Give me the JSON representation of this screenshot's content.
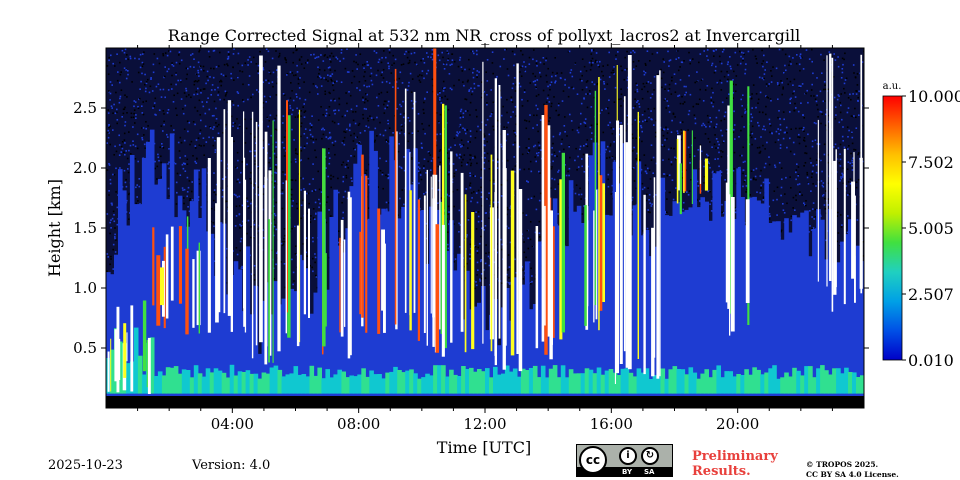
{
  "chart_data": {
    "type": "heatmap",
    "title": "Range Corrected Signal at 532 nm NR_cross of pollyxt_lacros2 at Invercargill",
    "xlabel": "Time [UTC]",
    "ylabel": "Height [km]",
    "xlim": [
      0,
      24
    ],
    "ylim": [
      0,
      3.0
    ],
    "x_ticks": [
      "04:00",
      "08:00",
      "12:00",
      "16:00",
      "20:00"
    ],
    "x_tick_values": [
      4,
      8,
      12,
      16,
      20
    ],
    "y_ticks": [
      "0.5",
      "1.0",
      "1.5",
      "2.0",
      "2.5"
    ],
    "y_tick_values": [
      0.5,
      1.0,
      1.5,
      2.0,
      2.5
    ],
    "colorbar": {
      "unit": "a.u.",
      "min": 0.01,
      "max": 10.0,
      "tick_labels": [
        "0.010",
        "2.507",
        "5.005",
        "7.502",
        "10.000"
      ],
      "colormap": [
        "#0000c8",
        "#0050e6",
        "#00a0e6",
        "#20d0c0",
        "#40e040",
        "#c0f000",
        "#ffff00",
        "#ffc000",
        "#ff6000",
        "#ff0000"
      ]
    },
    "background_signal_color": "#1e3cd2",
    "noise_color": "#000000",
    "saturation_color": "#ffffff",
    "cloud_events": [
      {
        "start": 0.0,
        "end": 1.4,
        "base": 0.1,
        "top": 0.9,
        "level": 0.6
      },
      {
        "start": 1.4,
        "end": 3.0,
        "base": 0.6,
        "top": 1.6,
        "level": 0.5
      },
      {
        "start": 3.2,
        "end": 4.4,
        "base": 0.6,
        "top": 2.6,
        "level": 0.9
      },
      {
        "start": 4.6,
        "end": 5.6,
        "base": 0.3,
        "top": 3.0,
        "level": 1.0
      },
      {
        "start": 5.6,
        "end": 6.4,
        "base": 0.5,
        "top": 2.6,
        "level": 0.8
      },
      {
        "start": 6.8,
        "end": 7.8,
        "base": 0.4,
        "top": 2.2,
        "level": 0.6
      },
      {
        "start": 8.0,
        "end": 8.8,
        "base": 0.6,
        "top": 2.4,
        "level": 0.8
      },
      {
        "start": 9.0,
        "end": 10.4,
        "base": 0.5,
        "top": 3.0,
        "level": 1.0
      },
      {
        "start": 10.4,
        "end": 11.6,
        "base": 0.4,
        "top": 2.8,
        "level": 0.8
      },
      {
        "start": 11.8,
        "end": 13.2,
        "base": 0.3,
        "top": 3.0,
        "level": 1.0
      },
      {
        "start": 13.4,
        "end": 14.6,
        "base": 0.4,
        "top": 2.6,
        "level": 0.8
      },
      {
        "start": 14.8,
        "end": 15.8,
        "base": 0.6,
        "top": 2.8,
        "level": 0.9
      },
      {
        "start": 16.0,
        "end": 17.6,
        "base": 0.2,
        "top": 3.0,
        "level": 1.0
      },
      {
        "start": 18.0,
        "end": 19.0,
        "base": 1.6,
        "top": 2.4,
        "level": 0.7
      },
      {
        "start": 19.6,
        "end": 20.4,
        "base": 0.6,
        "top": 2.8,
        "level": 0.9
      },
      {
        "start": 22.5,
        "end": 23.9,
        "base": 0.8,
        "top": 3.0,
        "level": 1.0
      }
    ]
  },
  "footer": {
    "date": "2025-10-23",
    "version": "Version: 4.0",
    "preliminary_line1": "Preliminary",
    "preliminary_line2": "Results.",
    "copyright_line1": "© TROPOS 2025.",
    "copyright_line2": "CC BY SA 4.0 License.",
    "license_badge": {
      "cc": "cc",
      "by": "BY",
      "sa": "SA"
    }
  }
}
